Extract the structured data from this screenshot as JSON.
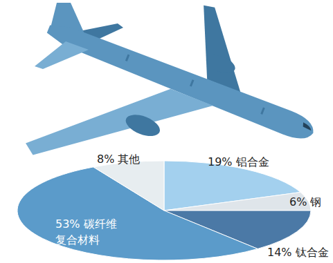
{
  "chart_data": {
    "type": "pie",
    "categories": [
      "铝合金",
      "钢",
      "钛合金",
      "碳纤维复合材料",
      "其他"
    ],
    "values": [
      19,
      6,
      14,
      53,
      8
    ],
    "value_labels": [
      "19%",
      "6%",
      "14%",
      "53%",
      "8%"
    ],
    "colors": [
      "#a3d0ee",
      "#dfe5ea",
      "#4b79a6",
      "#5b9bca",
      "#e7edf0"
    ],
    "data_labels": true
  }
}
